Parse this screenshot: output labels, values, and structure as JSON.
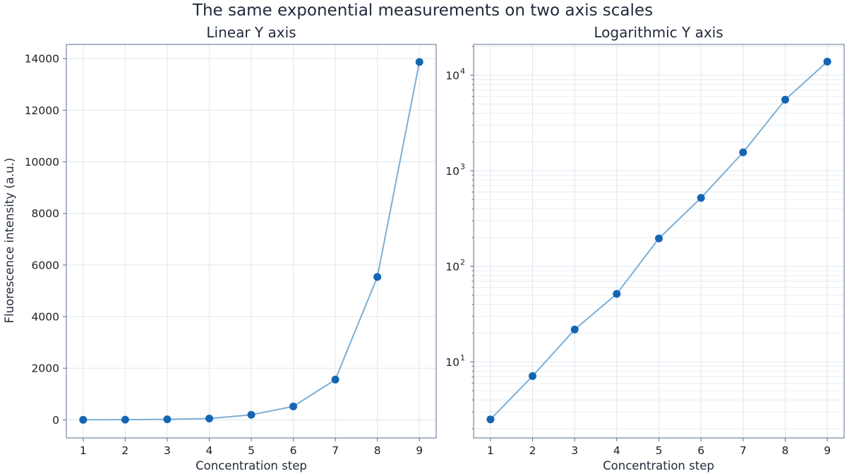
{
  "figure": {
    "title": "The same exponential measurements on two axis scales"
  },
  "colors": {
    "line": "#7bafd6",
    "marker": "#1565b3",
    "grid": "#dfe5ec",
    "frame": "#5b6f8c",
    "text": "#1f2a3a"
  },
  "chart_data": [
    {
      "type": "line",
      "title": "Linear Y axis",
      "xlabel": "Concentration step",
      "ylabel": "Fluorescence intensity (a.u.)",
      "yscale": "linear",
      "x": [
        1,
        2,
        3,
        4,
        5,
        6,
        7,
        8,
        9
      ],
      "y": [
        2.5,
        7.1,
        21.8,
        51.5,
        196,
        520,
        1560,
        5540,
        13870
      ],
      "xticks": [
        "1",
        "2",
        "3",
        "4",
        "5",
        "6",
        "7",
        "8",
        "9"
      ],
      "yticks": [
        "0",
        "2000",
        "4000",
        "6000",
        "8000",
        "10000",
        "12000",
        "14000"
      ],
      "xlim": [
        0.6,
        9.4
      ],
      "ylim": [
        -700,
        14550
      ],
      "grid": true,
      "legend": "none"
    },
    {
      "type": "line",
      "title": "Logarithmic Y axis",
      "xlabel": "Concentration step",
      "ylabel": "",
      "yscale": "log",
      "x": [
        1,
        2,
        3,
        4,
        5,
        6,
        7,
        8,
        9
      ],
      "y": [
        2.5,
        7.1,
        21.8,
        51.5,
        196,
        520,
        1560,
        5540,
        13870
      ],
      "xticks": [
        "1",
        "2",
        "3",
        "4",
        "5",
        "6",
        "7",
        "8",
        "9"
      ],
      "yticks": [
        {
          "base": "10",
          "exp": "1"
        },
        {
          "base": "10",
          "exp": "2"
        },
        {
          "base": "10",
          "exp": "3"
        },
        {
          "base": "10",
          "exp": "4"
        }
      ],
      "xlim": [
        0.6,
        9.4
      ],
      "ylim": [
        1.6,
        21000
      ],
      "grid": true,
      "legend": "none"
    }
  ]
}
